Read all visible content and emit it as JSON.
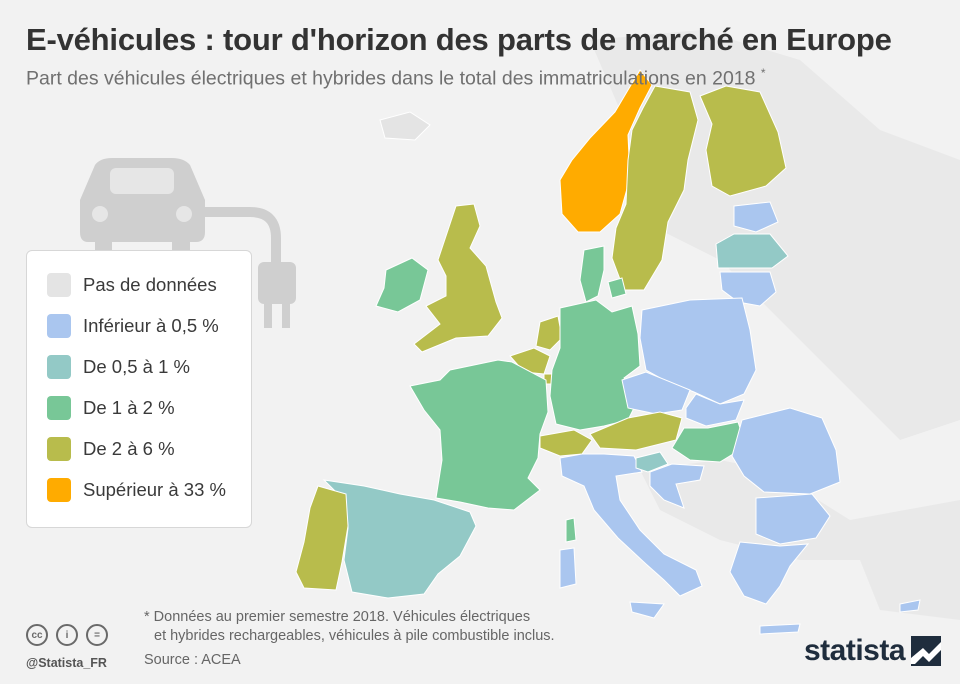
{
  "header": {
    "title": "E-véhicules : tour d'horizon des parts de marché en Europe",
    "subtitle": "Part des véhicules électriques et hybrides dans le total des immatriculations en 2018",
    "subtitle_mark": "*"
  },
  "legend": {
    "items": [
      {
        "label": "Pas de données",
        "color": "#e4e4e4"
      },
      {
        "label": "Inférieur à 0,5 %",
        "color": "#aac6ef"
      },
      {
        "label": "De 0,5 à 1 %",
        "color": "#93c9c6"
      },
      {
        "label": "De 1 à 2 %",
        "color": "#78c797"
      },
      {
        "label": "De 2 à 6 %",
        "color": "#b8bc4c"
      },
      {
        "label": "Supérieur à 33 %",
        "color": "#ffab00"
      }
    ]
  },
  "map": {
    "background_land_color": "#e9e9e9",
    "sea_color": "#f2f2f2",
    "icon": "electric-car-plug-icon",
    "countries": [
      {
        "name": "Norvège",
        "category": 5
      },
      {
        "name": "Suède",
        "category": 4
      },
      {
        "name": "Finlande",
        "category": 4
      },
      {
        "name": "Danemark",
        "category": 3
      },
      {
        "name": "Royaume-Uni",
        "category": 4
      },
      {
        "name": "Irlande",
        "category": 3
      },
      {
        "name": "Pays-Bas",
        "category": 4
      },
      {
        "name": "Belgique",
        "category": 4
      },
      {
        "name": "Luxembourg",
        "category": 4
      },
      {
        "name": "Allemagne",
        "category": 3
      },
      {
        "name": "France",
        "category": 3
      },
      {
        "name": "Espagne",
        "category": 2
      },
      {
        "name": "Portugal",
        "category": 4
      },
      {
        "name": "Suisse",
        "category": 4
      },
      {
        "name": "Autriche",
        "category": 4
      },
      {
        "name": "Italie",
        "category": 1
      },
      {
        "name": "Slovénie",
        "category": 2
      },
      {
        "name": "Croatie",
        "category": 1
      },
      {
        "name": "Hongrie",
        "category": 3
      },
      {
        "name": "République tchèque",
        "category": 1
      },
      {
        "name": "Slovaquie",
        "category": 1
      },
      {
        "name": "Pologne",
        "category": 1
      },
      {
        "name": "Lituanie",
        "category": 1
      },
      {
        "name": "Lettonie",
        "category": 2
      },
      {
        "name": "Estonie",
        "category": 1
      },
      {
        "name": "Roumanie",
        "category": 1
      },
      {
        "name": "Bulgarie",
        "category": 1
      },
      {
        "name": "Grèce",
        "category": 1
      },
      {
        "name": "Chypre",
        "category": 1
      },
      {
        "name": "Islande",
        "category": 0
      }
    ]
  },
  "footer": {
    "footnote_line1": "* Données au premier semestre 2018. Véhicules électriques",
    "footnote_line2": "et hybrides rechargeables, véhicules à pile combustible inclus.",
    "source": "Source : ACEA",
    "handle": "@Statista_FR",
    "brand": "statista",
    "license_icons": [
      "cc-icon",
      "by-icon",
      "nd-icon"
    ],
    "license_glyphs": [
      "cc",
      "i",
      "="
    ]
  }
}
